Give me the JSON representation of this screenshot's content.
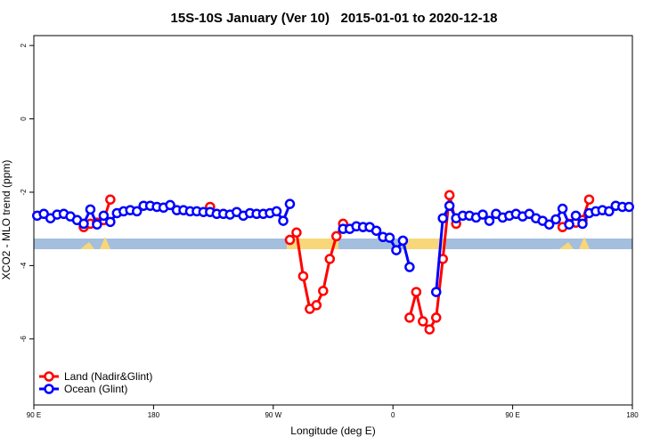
{
  "chart_data": {
    "type": "line",
    "title": "15S-10S January (Ver 10)   2015-01-01 to 2020-12-18",
    "x_label": "Longitude (deg E)",
    "y_label": "XCO2 - MLO trend (ppm)",
    "xlim": [
      90,
      540
    ],
    "ylim": [
      -7.8,
      2.27
    ],
    "xticks": [
      {
        "value": 90,
        "label": "90 E"
      },
      {
        "value": 180,
        "label": "180"
      },
      {
        "value": 270,
        "label": "90 W"
      },
      {
        "value": 360,
        "label": "0"
      },
      {
        "value": 450,
        "label": "90 E"
      },
      {
        "value": 540,
        "label": "180"
      }
    ],
    "yticks": [
      -6,
      -4,
      -2,
      0,
      2
    ],
    "legend": "bottom-left",
    "x": [
      92.5,
      97.5,
      102.5,
      107.5,
      112.5,
      117.5,
      122.5,
      127.5,
      132.5,
      137.5,
      142.5,
      147.5,
      152.5,
      157.5,
      162.5,
      167.5,
      172.5,
      177.5,
      182.5,
      187.5,
      192.5,
      197.5,
      202.5,
      207.5,
      212.5,
      217.5,
      222.5,
      227.5,
      232.5,
      237.5,
      242.5,
      247.5,
      252.5,
      257.5,
      262.5,
      267.5,
      272.5,
      277.5,
      282.5,
      287.5,
      292.5,
      297.5,
      302.5,
      307.5,
      312.5,
      317.5,
      322.5,
      327.5,
      332.5,
      337.5,
      342.5,
      347.5,
      352.5,
      357.5,
      362.5,
      367.5,
      372.5,
      377.5,
      382.5,
      387.5,
      392.5,
      397.5,
      402.5,
      407.5,
      412.5,
      417.5,
      422.5,
      427.5,
      432.5,
      437.5,
      442.5,
      447.5,
      452.5,
      457.5,
      462.5,
      467.5,
      472.5,
      477.5,
      482.5,
      487.5,
      492.5,
      497.5,
      502.5,
      507.5,
      512.5,
      517.5,
      522.5,
      527.5,
      532.5,
      537.5
    ],
    "series": [
      {
        "name": "Land (Nadir&Glint)",
        "color": "#ff0000",
        "values": [
          null,
          null,
          null,
          null,
          null,
          null,
          null,
          -2.95,
          -2.86,
          -2.83,
          -2.76,
          -2.2,
          null,
          null,
          null,
          null,
          null,
          null,
          null,
          null,
          null,
          null,
          null,
          null,
          null,
          null,
          -2.4,
          null,
          null,
          null,
          null,
          null,
          null,
          null,
          null,
          null,
          null,
          null,
          -3.3,
          -3.1,
          -4.29,
          -5.18,
          -5.08,
          -4.69,
          -3.82,
          -3.2,
          -2.86,
          null,
          null,
          null,
          null,
          null,
          null,
          null,
          null,
          null,
          -5.42,
          -4.72,
          -5.52,
          -5.74,
          -5.42,
          -3.82,
          -2.08,
          -2.86,
          null,
          null,
          null,
          null,
          null,
          null,
          null,
          null,
          null,
          null,
          null,
          null,
          null,
          null,
          null,
          -2.95,
          -2.86,
          -2.83,
          -2.76,
          -2.2,
          null,
          null,
          null,
          null,
          null,
          null
        ]
      },
      {
        "name": "Ocean (Glint)",
        "color": "#0000ff",
        "values": [
          -2.64,
          -2.59,
          -2.71,
          -2.61,
          -2.59,
          -2.66,
          -2.76,
          -2.86,
          -2.47,
          -2.88,
          -2.64,
          -2.81,
          -2.57,
          -2.52,
          -2.49,
          -2.52,
          -2.37,
          -2.37,
          -2.4,
          -2.42,
          -2.35,
          -2.49,
          -2.49,
          -2.52,
          -2.52,
          -2.54,
          -2.54,
          -2.59,
          -2.59,
          -2.61,
          -2.54,
          -2.64,
          -2.57,
          -2.59,
          -2.59,
          -2.57,
          -2.52,
          -2.78,
          -2.32,
          null,
          null,
          null,
          null,
          null,
          null,
          null,
          -3.0,
          -3.0,
          -2.93,
          -2.95,
          -2.95,
          -3.05,
          -3.22,
          -3.24,
          -3.58,
          -3.32,
          -4.04,
          null,
          null,
          null,
          -4.72,
          -2.71,
          -2.37,
          -2.71,
          -2.64,
          -2.64,
          -2.69,
          -2.61,
          -2.78,
          -2.59,
          -2.69,
          -2.64,
          -2.59,
          -2.66,
          -2.59,
          -2.71,
          -2.78,
          -2.88,
          -2.74,
          -2.45,
          -2.88,
          -2.64,
          -2.86,
          -2.57,
          -2.52,
          -2.49,
          -2.52,
          -2.37,
          -2.4,
          -2.4
        ]
      }
    ]
  }
}
